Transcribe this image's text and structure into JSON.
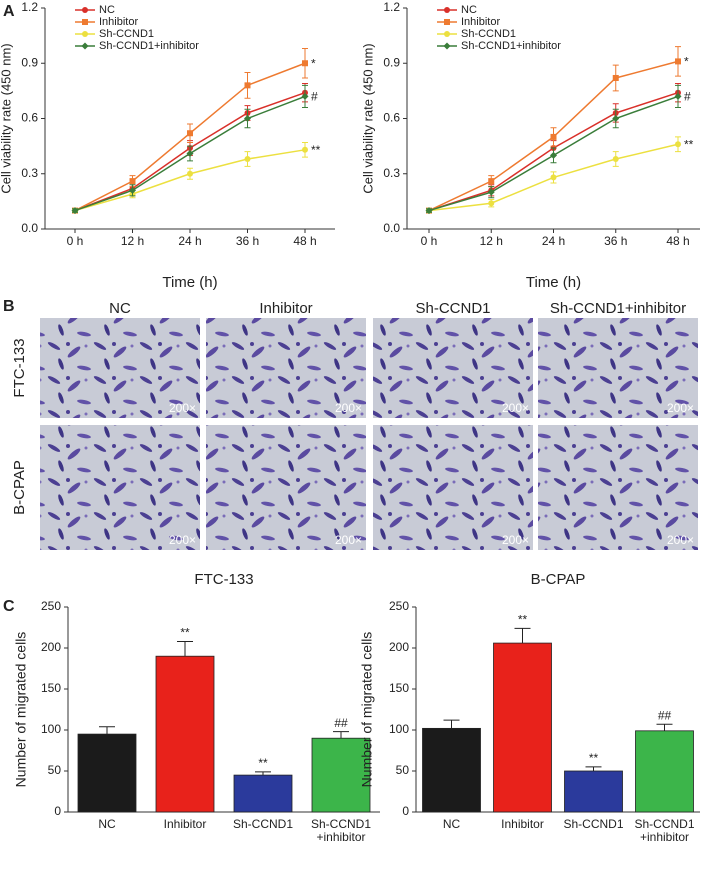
{
  "panel_labels": [
    "A",
    "B",
    "C"
  ],
  "micrographs": {
    "columns": [
      "NC",
      "Inhibitor",
      "Sh-CCND1",
      "Sh-CCND1+inhibitor"
    ],
    "rows": [
      "FTC-133",
      "B-CPAP"
    ],
    "magnification": "200×"
  },
  "chart_data": [
    {
      "type": "line",
      "xlabel": "Time (h)",
      "ylabel": "Cell viability rate (450 nm)",
      "categories": [
        "0 h",
        "12 h",
        "24 h",
        "36 h",
        "48 h"
      ],
      "ylim": [
        0,
        1.2
      ],
      "yticks": [
        {
          "value": 0,
          "label": "0.0"
        },
        0.3,
        0.6,
        0.9,
        1.2
      ],
      "series": [
        {
          "name": "NC",
          "color": "#d9302a",
          "marker": "circle",
          "values": [
            0.1,
            0.22,
            0.44,
            0.63,
            0.74
          ],
          "errors": [
            0.01,
            0.03,
            0.04,
            0.04,
            0.05
          ],
          "annotation": null
        },
        {
          "name": "Inhibitor",
          "color": "#ee7a30",
          "marker": "square",
          "values": [
            0.1,
            0.26,
            0.52,
            0.78,
            0.9
          ],
          "errors": [
            0.01,
            0.03,
            0.05,
            0.07,
            0.08
          ],
          "annotation": "*"
        },
        {
          "name": "Sh-CCND1",
          "color": "#ece040",
          "marker": "circle",
          "values": [
            0.1,
            0.19,
            0.3,
            0.38,
            0.43
          ],
          "errors": [
            0.01,
            0.02,
            0.03,
            0.04,
            0.04
          ],
          "annotation": "**"
        },
        {
          "name": "Sh-CCND1+inhibitor",
          "color": "#3a7d3a",
          "marker": "diamond",
          "values": [
            0.1,
            0.21,
            0.41,
            0.6,
            0.72
          ],
          "errors": [
            0.01,
            0.03,
            0.04,
            0.05,
            0.06
          ],
          "annotation": "#"
        }
      ]
    },
    {
      "type": "line",
      "xlabel": "Time (h)",
      "ylabel": "Cell viability rate (450 nm)",
      "categories": [
        "0 h",
        "12 h",
        "24 h",
        "36 h",
        "48 h"
      ],
      "ylim": [
        0,
        1.2
      ],
      "yticks": [
        {
          "value": 0,
          "label": "0.0"
        },
        0.3,
        0.6,
        0.9,
        1.2
      ],
      "series": [
        {
          "name": "NC",
          "color": "#d9302a",
          "marker": "circle",
          "values": [
            0.1,
            0.21,
            0.44,
            0.63,
            0.74
          ],
          "errors": [
            0.01,
            0.03,
            0.04,
            0.05,
            0.05
          ],
          "annotation": null
        },
        {
          "name": "Inhibitor",
          "color": "#ee7a30",
          "marker": "square",
          "values": [
            0.1,
            0.26,
            0.5,
            0.82,
            0.91
          ],
          "errors": [
            0.01,
            0.03,
            0.05,
            0.07,
            0.08
          ],
          "annotation": "*"
        },
        {
          "name": "Sh-CCND1",
          "color": "#ece040",
          "marker": "circle",
          "values": [
            0.1,
            0.14,
            0.28,
            0.38,
            0.46
          ],
          "errors": [
            0.01,
            0.02,
            0.03,
            0.04,
            0.04
          ],
          "annotation": "**"
        },
        {
          "name": "Sh-CCND1+inhibitor",
          "color": "#3a7d3a",
          "marker": "diamond",
          "values": [
            0.1,
            0.2,
            0.4,
            0.6,
            0.72
          ],
          "errors": [
            0.01,
            0.03,
            0.04,
            0.05,
            0.06
          ],
          "annotation": "#"
        }
      ]
    },
    {
      "type": "bar",
      "title": "FTC-133",
      "ylabel": "Number of migrated cells",
      "categories": [
        "NC",
        "Inhibitor",
        "Sh-CCND1",
        "Sh-CCND1 +inhibitor"
      ],
      "values": [
        95,
        190,
        45,
        90
      ],
      "errors": [
        9,
        18,
        4,
        8
      ],
      "annotations": [
        null,
        "**",
        "**",
        "##"
      ],
      "colors": [
        "#1b1b1b",
        "#e8221b",
        "#2b3a9c",
        "#3cb54a"
      ],
      "ylim": [
        0,
        250
      ],
      "yticks": [
        0,
        50,
        100,
        150,
        200,
        250
      ]
    },
    {
      "type": "bar",
      "title": "B-CPAP",
      "ylabel": "Number of migrated cells",
      "categories": [
        "NC",
        "Inhibitor",
        "Sh-CCND1",
        "Sh-CCND1 +inhibitor"
      ],
      "values": [
        102,
        206,
        50,
        99
      ],
      "errors": [
        10,
        18,
        5,
        8
      ],
      "annotations": [
        null,
        "**",
        "**",
        "##"
      ],
      "colors": [
        "#1b1b1b",
        "#e8221b",
        "#2b3a9c",
        "#3cb54a"
      ],
      "ylim": [
        0,
        250
      ],
      "yticks": [
        0,
        50,
        100,
        150,
        200,
        250
      ]
    }
  ]
}
